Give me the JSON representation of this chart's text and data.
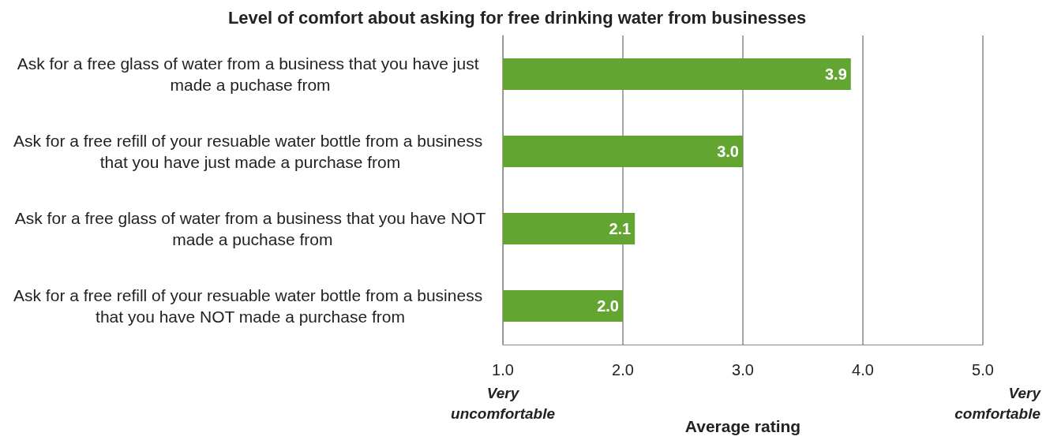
{
  "chart_data": {
    "type": "bar",
    "orientation": "horizontal",
    "title": "Level of comfort about asking for free drinking water from businesses",
    "categories": [
      "Ask for a free glass of water from a business that you have just made a puchase from",
      "Ask for a free refill of your resuable water bottle from a business that you have just made a purchase from",
      "Ask for a free glass of water from a business that you have NOT made a puchase from",
      "Ask for a free refill of your resuable water bottle from a business that you have NOT made a purchase from"
    ],
    "values": [
      3.9,
      3.0,
      2.1,
      2.0
    ],
    "color": "#63a531",
    "value_labels": [
      "3.9",
      "3.0",
      "2.1",
      "2.0"
    ],
    "xlim": [
      1,
      5
    ],
    "xticks": [
      {
        "value": 1,
        "label": "1.0"
      },
      {
        "value": 2,
        "label": "2.0"
      },
      {
        "value": 3,
        "label": "3.0"
      },
      {
        "value": 4,
        "label": "4.0"
      },
      {
        "value": 5,
        "label": "5.0"
      }
    ],
    "xlabel": "Average rating",
    "grid": "x",
    "annotations": [
      "Very\nuncomfortable",
      "Very\ncomfortable"
    ]
  }
}
